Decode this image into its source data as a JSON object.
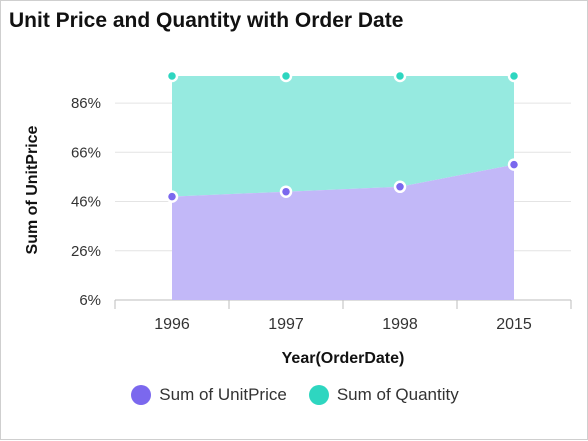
{
  "chart_data": {
    "type": "area",
    "stacked": true,
    "title": "Unit Price and Quantity with Order Date",
    "xlabel": "Year(OrderDate)",
    "ylabel": "Sum of UnitPrice",
    "categories": [
      "1996",
      "1997",
      "1998",
      "2015"
    ],
    "ylim": [
      6,
      97
    ],
    "yticks": [
      6,
      26,
      46,
      66,
      86
    ],
    "ytick_labels": [
      "6%",
      "26%",
      "46%",
      "66%",
      "86%"
    ],
    "grid": true,
    "legend_position": "bottom",
    "series": [
      {
        "name": "Sum of UnitPrice",
        "color": "#7b68ee",
        "fill": "#c2b8f8",
        "values": [
          48,
          50,
          52,
          61
        ]
      },
      {
        "name": "Sum of Quantity",
        "color": "#2ed6c0",
        "fill": "#96eae0",
        "values": [
          49,
          47,
          45,
          36
        ]
      }
    ]
  }
}
